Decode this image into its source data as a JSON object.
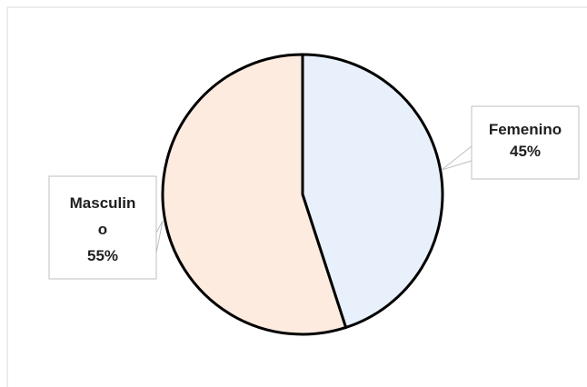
{
  "chart_data": {
    "type": "pie",
    "title": "",
    "slices": [
      {
        "category": "Femenino",
        "value": 45,
        "display_value": "45%",
        "fill": "#e8f1fb",
        "label_lines": [
          "Femenino",
          "45%"
        ]
      },
      {
        "category": "Masculino",
        "value": 55,
        "display_value": "55%",
        "fill": "#fdebdf",
        "label_lines": [
          "Masculin",
          "o",
          "55%"
        ]
      }
    ],
    "outline_color": "#000000",
    "legend": "none",
    "data_labels": "callouts"
  }
}
